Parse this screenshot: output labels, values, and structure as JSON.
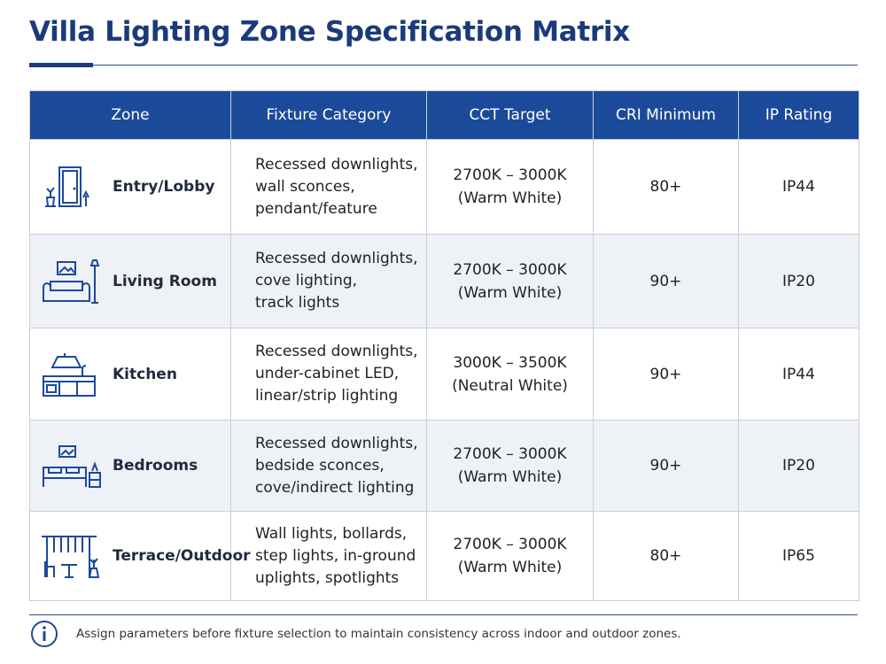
{
  "title": "Villa Lighting Zone Specification Matrix",
  "table": {
    "columns": [
      "Zone",
      "Fixture Category",
      "CCT Target",
      "CRI Minimum",
      "IP Rating"
    ],
    "rows": [
      {
        "zone": "Entry/Lobby",
        "fixture": [
          "Recessed downlights,",
          "wall sconces,",
          "pendant/feature"
        ],
        "cct": [
          "2700K – 3000K",
          "(Warm White)"
        ],
        "cri": "80+",
        "ip": "IP44"
      },
      {
        "zone": "Living Room",
        "fixture": [
          "Recessed downlights,",
          "cove lighting,",
          "track lights"
        ],
        "cct": [
          "2700K – 3000K",
          "(Warm White)"
        ],
        "cri": "90+",
        "ip": "IP20"
      },
      {
        "zone": "Kitchen",
        "fixture": [
          "Recessed downlights,",
          "under-cabinet LED,",
          "linear/strip lighting"
        ],
        "cct": [
          "3000K – 3500K",
          "(Neutral White)"
        ],
        "cri": "90+",
        "ip": "IP44"
      },
      {
        "zone": "Bedrooms",
        "fixture": [
          "Recessed downlights,",
          "bedside sconces,",
          "cove/indirect lighting"
        ],
        "cct": [
          "2700K – 3000K",
          "(Warm White)"
        ],
        "cri": "90+",
        "ip": "IP20"
      },
      {
        "zone": "Terrace/Outdoor",
        "fixture": [
          "Wall lights, bollards,",
          "step lights, in-ground",
          "uplights, spotlights"
        ],
        "cct": [
          "2700K – 3000K",
          "(Warm White)"
        ],
        "cri": "80+",
        "ip": "IP65"
      }
    ]
  },
  "note": "Assign parameters before fixture selection to maintain consistency across indoor and outdoor zones."
}
